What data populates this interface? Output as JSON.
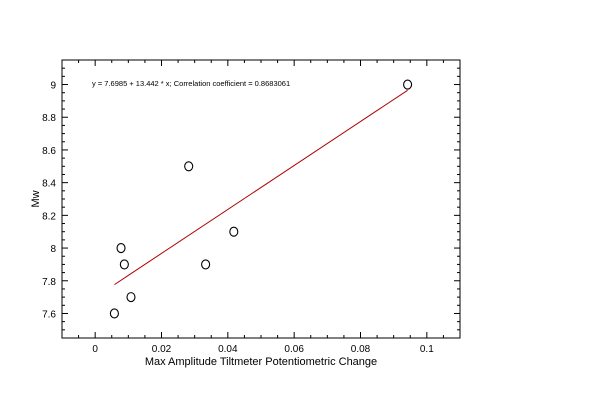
{
  "chart_data": {
    "type": "scatter",
    "title": "",
    "xlabel": "Max Amplitude Tiltmeter Potentiometric Change",
    "ylabel": "Mw",
    "xlim": [
      -0.01,
      0.11
    ],
    "ylim": [
      7.45,
      9.15
    ],
    "xticks": [
      0,
      0.02,
      0.04,
      0.06,
      0.08,
      0.1
    ],
    "xtick_labels": [
      "0",
      "0.02",
      "0.04",
      "0.06",
      "0.08",
      "0.1"
    ],
    "yticks": [
      7.6,
      7.8,
      8.0,
      8.2,
      8.4,
      8.6,
      8.8,
      9.0
    ],
    "ytick_labels": [
      "7.6",
      "7.8",
      "8",
      "8.2",
      "8.4",
      "8.6",
      "8.8",
      "9"
    ],
    "grid": false,
    "points": [
      {
        "x": 0.0058,
        "y": 7.6
      },
      {
        "x": 0.0078,
        "y": 8.0
      },
      {
        "x": 0.0088,
        "y": 7.9
      },
      {
        "x": 0.0108,
        "y": 7.7
      },
      {
        "x": 0.0282,
        "y": 8.5
      },
      {
        "x": 0.0333,
        "y": 7.9
      },
      {
        "x": 0.0418,
        "y": 8.1
      },
      {
        "x": 0.0942,
        "y": 9.0
      }
    ],
    "fit_line": {
      "intercept": 7.6985,
      "slope": 13.442,
      "x_range": [
        0.0058,
        0.0942
      ]
    },
    "annotation": "y = 7.6985 + 13.442 * x;  Correlation coefficient = 0.8683061",
    "colors": {
      "points": "#000000",
      "fit_line": "#b00000",
      "axes": "#000000"
    }
  }
}
